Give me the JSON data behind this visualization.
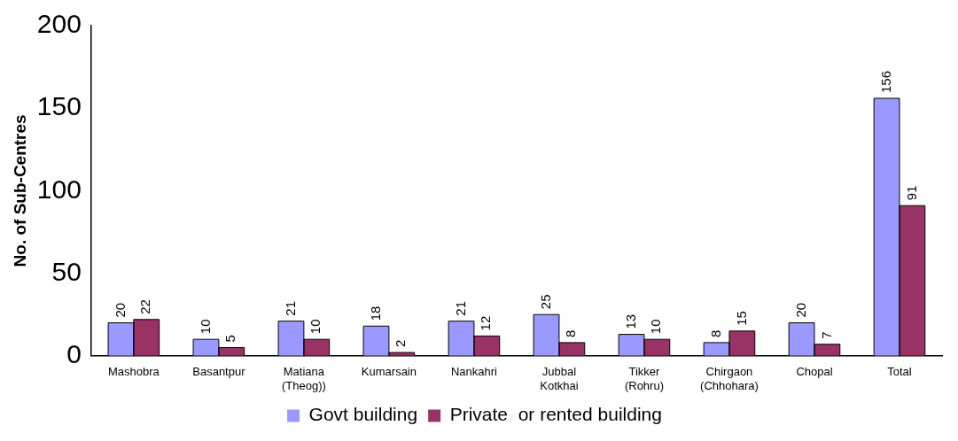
{
  "chart_data": {
    "type": "bar",
    "ylabel": "No. of Sub-Centres",
    "categories": [
      "Mashobra",
      "Basantpur",
      "Matiana (Theog))",
      "Kumarsain",
      "Nankahri",
      "Jubbal Kotkhai",
      "Tikker (Rohru)",
      "Chirgaon (Chhohara)",
      "Chopal",
      "Total"
    ],
    "series": [
      {
        "name": "Govt building",
        "color": "#9999ff",
        "values": [
          20,
          10,
          21,
          18,
          21,
          25,
          13,
          8,
          20,
          156
        ]
      },
      {
        "name": "Private  or rented building",
        "color": "#993366",
        "values": [
          22,
          5,
          10,
          2,
          12,
          8,
          10,
          15,
          7,
          91
        ]
      }
    ],
    "ylim": [
      0,
      200
    ],
    "yticks": [
      0,
      50,
      100,
      150,
      200
    ],
    "grid": false,
    "legend": "bottom",
    "data_labels": true
  }
}
